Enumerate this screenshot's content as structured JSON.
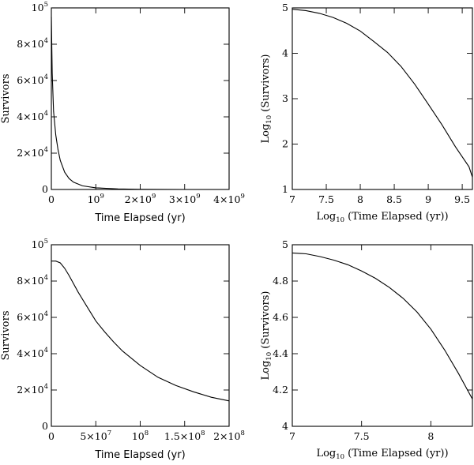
{
  "chart_data": [
    {
      "type": "line",
      "xlabel": "Time Elapsed (yr)",
      "ylabel": "Survivors",
      "xlim": [
        0,
        4000000000
      ],
      "ylim": [
        0,
        100000
      ],
      "xticks": [
        {
          "v": 1000000000,
          "mant": "",
          "base": "10",
          "exp": "9"
        },
        {
          "v": 2000000000,
          "mant": "2×",
          "base": "10",
          "exp": "9"
        },
        {
          "v": 3000000000,
          "mant": "3×",
          "base": "10",
          "exp": "9"
        },
        {
          "v": 4000000000,
          "mant": "4×",
          "base": "10",
          "exp": "9"
        }
      ],
      "extra_xticklabel": "0",
      "yticks": [
        {
          "v": 0,
          "mant": "0",
          "base": "",
          "exp": ""
        },
        {
          "v": 20000,
          "mant": "2×",
          "base": "10",
          "exp": "4"
        },
        {
          "v": 40000,
          "mant": "4×",
          "base": "10",
          "exp": "4"
        },
        {
          "v": 60000,
          "mant": "6×",
          "base": "10",
          "exp": "4"
        },
        {
          "v": 80000,
          "mant": "8×",
          "base": "10",
          "exp": "4"
        },
        {
          "v": 100000,
          "mant": "",
          "base": "10",
          "exp": "5"
        }
      ],
      "series": [
        {
          "x": [
            0,
            20000000,
            50000000,
            100000000,
            150000000,
            200000000,
            300000000,
            400000000,
            500000000,
            700000000,
            1000000000,
            1500000000,
            2000000000,
            2500000000,
            3000000000,
            3500000000,
            4000000000
          ],
          "y": [
            95000,
            64000,
            43000,
            30000,
            22000,
            16000,
            9500,
            6000,
            4000,
            2000,
            900,
            300,
            100,
            40,
            20,
            15,
            10
          ]
        }
      ]
    },
    {
      "type": "line",
      "xlabel": "Log10 (Time Elapsed (yr))",
      "ylabel": "Log10 (Survivors)",
      "xlim": [
        7,
        9.65
      ],
      "ylim": [
        1,
        5
      ],
      "xticks": [
        7,
        7.5,
        8,
        8.5,
        9,
        9.5
      ],
      "xticklabels": [
        "7",
        "7.5",
        "8",
        "8.5",
        "9",
        "9.5"
      ],
      "yticks": [
        1,
        2,
        3,
        4,
        5
      ],
      "yticklabels": [
        "1",
        "2",
        "3",
        "4",
        "5"
      ],
      "series": [
        {
          "x": [
            7.0,
            7.2,
            7.4,
            7.6,
            7.8,
            8.0,
            8.2,
            8.4,
            8.6,
            8.8,
            9.0,
            9.2,
            9.4,
            9.6,
            9.65
          ],
          "y": [
            4.97,
            4.94,
            4.88,
            4.79,
            4.66,
            4.49,
            4.26,
            4.02,
            3.71,
            3.32,
            2.88,
            2.43,
            1.94,
            1.5,
            1.27
          ]
        }
      ]
    },
    {
      "type": "line",
      "xlabel": "Time Elapsed (yr)",
      "ylabel": "Survivors",
      "xlim": [
        0,
        200000000
      ],
      "ylim": [
        0,
        100000
      ],
      "xticks": [
        {
          "v": 50000000,
          "mant": "5×",
          "base": "10",
          "exp": "7"
        },
        {
          "v": 100000000,
          "mant": "",
          "base": "10",
          "exp": "8"
        },
        {
          "v": 150000000,
          "mant": "1.5×",
          "base": "10",
          "exp": "8"
        },
        {
          "v": 200000000,
          "mant": "2×",
          "base": "10",
          "exp": "8"
        }
      ],
      "extra_xticklabel": "0",
      "yticks": [
        {
          "v": 0,
          "mant": "0",
          "base": "",
          "exp": ""
        },
        {
          "v": 20000,
          "mant": "2×",
          "base": "10",
          "exp": "4"
        },
        {
          "v": 40000,
          "mant": "4×",
          "base": "10",
          "exp": "4"
        },
        {
          "v": 60000,
          "mant": "6×",
          "base": "10",
          "exp": "4"
        },
        {
          "v": 80000,
          "mant": "8×",
          "base": "10",
          "exp": "4"
        },
        {
          "v": 100000,
          "mant": "",
          "base": "10",
          "exp": "5"
        }
      ],
      "series": [
        {
          "x": [
            0,
            5000000,
            10000000,
            15000000,
            20000000,
            30000000,
            40000000,
            50000000,
            60000000,
            70000000,
            80000000,
            100000000,
            120000000,
            140000000,
            160000000,
            180000000,
            200000000
          ],
          "y": [
            91000,
            91000,
            90000,
            87000,
            83000,
            74000,
            66000,
            58000,
            52000,
            46500,
            41500,
            33500,
            27000,
            22500,
            19000,
            16000,
            14000
          ]
        }
      ]
    },
    {
      "type": "line",
      "xlabel": "Log10 (Time Elapsed (yr))",
      "ylabel": "Log10 (Survivors)",
      "xlim": [
        7,
        8.3
      ],
      "ylim": [
        4,
        5
      ],
      "xticks": [
        7,
        7.5,
        8
      ],
      "xticklabels": [
        "7",
        "7.5",
        "8"
      ],
      "yticks": [
        4,
        4.2,
        4.4,
        4.6,
        4.8,
        5
      ],
      "yticklabels": [
        "4",
        "4.2",
        "4.4",
        "4.6",
        "4.8",
        "5"
      ],
      "series": [
        {
          "x": [
            7.0,
            7.1,
            7.2,
            7.3,
            7.4,
            7.5,
            7.6,
            7.7,
            7.8,
            7.9,
            8.0,
            8.1,
            8.2,
            8.3
          ],
          "y": [
            4.955,
            4.95,
            4.935,
            4.915,
            4.89,
            4.855,
            4.815,
            4.765,
            4.705,
            4.63,
            4.535,
            4.42,
            4.29,
            4.15
          ]
        }
      ]
    }
  ]
}
